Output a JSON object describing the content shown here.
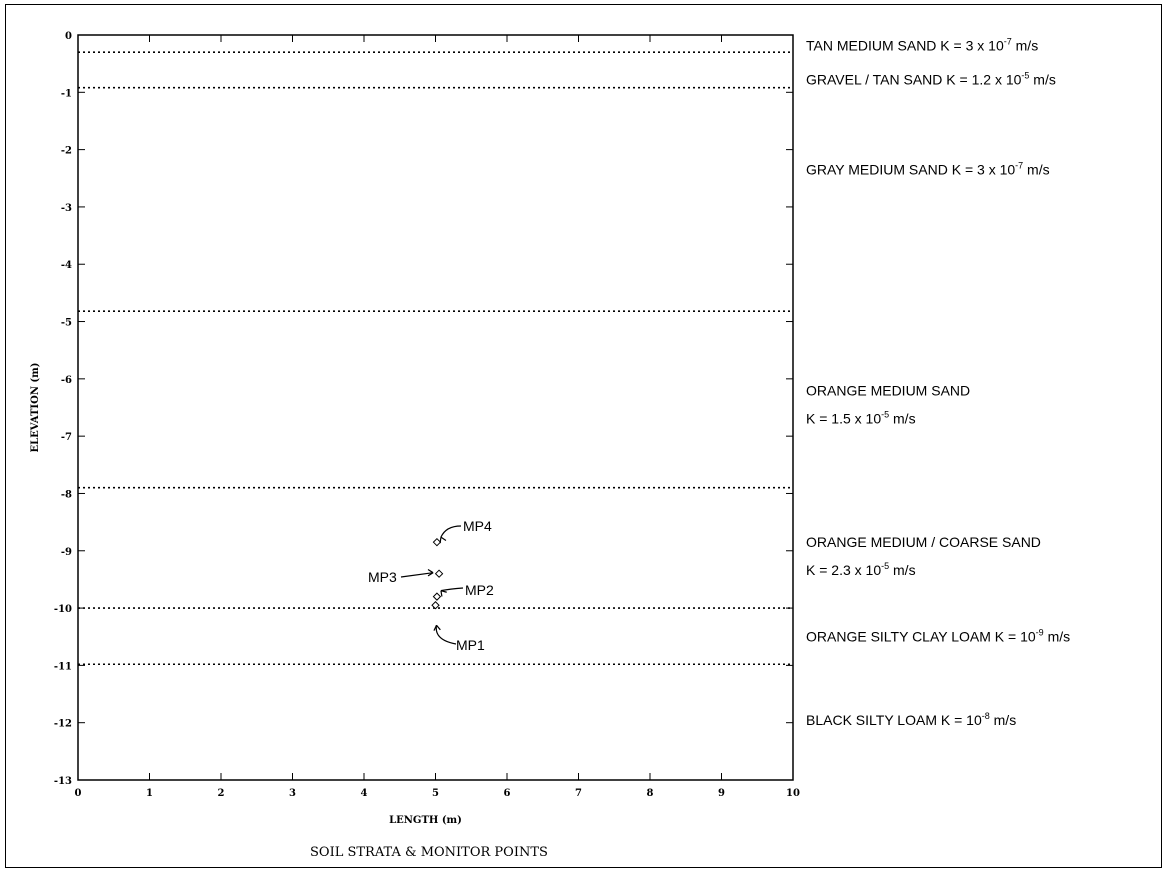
{
  "chart_data": {
    "type": "scatter",
    "title": "SOIL STRATA & MONITOR POINTS",
    "xlabel": "LENGTH (m)",
    "ylabel": "ELEVATION (m)",
    "xlim": [
      0,
      10
    ],
    "ylim": [
      -13,
      0
    ],
    "x_ticks": [
      "0",
      "1",
      "2",
      "3",
      "4",
      "5",
      "6",
      "7",
      "8",
      "9",
      "10"
    ],
    "y_ticks": [
      "0",
      "-1",
      "-2",
      "-3",
      "-4",
      "-5",
      "-6",
      "-7",
      "-8",
      "-9",
      "-10",
      "-11",
      "-12",
      "-13"
    ],
    "grid": false,
    "boundaries": [
      -0.3,
      -0.92,
      -4.82,
      -7.9,
      -10.0,
      -10.98
    ],
    "layers": [
      {
        "line1": [
          {
            "t": "TAN MEDIUM SAND K = 3 x 10"
          },
          {
            "t": "-7",
            "sup": true
          },
          {
            "t": " m/s"
          }
        ],
        "elevation": -0.18
      },
      {
        "line1": [
          {
            "t": "GRAVEL / TAN SAND K = 1.2 x 10"
          },
          {
            "t": "-5",
            "sup": true
          },
          {
            "t": " m/s"
          }
        ],
        "elevation": -0.78
      },
      {
        "line1": [
          {
            "t": "GRAY MEDIUM SAND K = 3 x 10"
          },
          {
            "t": "-7",
            "sup": true
          },
          {
            "t": " m/s"
          }
        ],
        "elevation": -2.35
      },
      {
        "line1": [
          {
            "t": "ORANGE MEDIUM SAND"
          }
        ],
        "line2": [
          {
            "t": "K = 1.5 x 10"
          },
          {
            "t": "-5",
            "sup": true
          },
          {
            "t": " m/s"
          }
        ],
        "elevation": -6.2
      },
      {
        "line1": [
          {
            "t": "ORANGE MEDIUM / COARSE SAND"
          }
        ],
        "line2": [
          {
            "t": "K = 2.3 x 10"
          },
          {
            "t": "-5",
            "sup": true
          },
          {
            "t": " m/s"
          }
        ],
        "elevation": -8.85
      },
      {
        "line1": [
          {
            "t": "ORANGE SILTY CLAY LOAM K = 10"
          },
          {
            "t": "-9",
            "sup": true
          },
          {
            "t": " m/s"
          }
        ],
        "elevation": -10.5
      },
      {
        "line1": [
          {
            "t": "BLACK SILTY LOAM K = 10"
          },
          {
            "t": "-8",
            "sup": true
          },
          {
            "t": " m/s"
          }
        ],
        "elevation": -11.95
      }
    ],
    "monitor_points": [
      {
        "label": "MP1",
        "x": 5.0,
        "y": -9.95
      },
      {
        "label": "MP2",
        "x": 5.02,
        "y": -9.8
      },
      {
        "label": "MP3",
        "x": 5.05,
        "y": -9.4
      },
      {
        "label": "MP4",
        "x": 5.02,
        "y": -8.85
      }
    ]
  }
}
